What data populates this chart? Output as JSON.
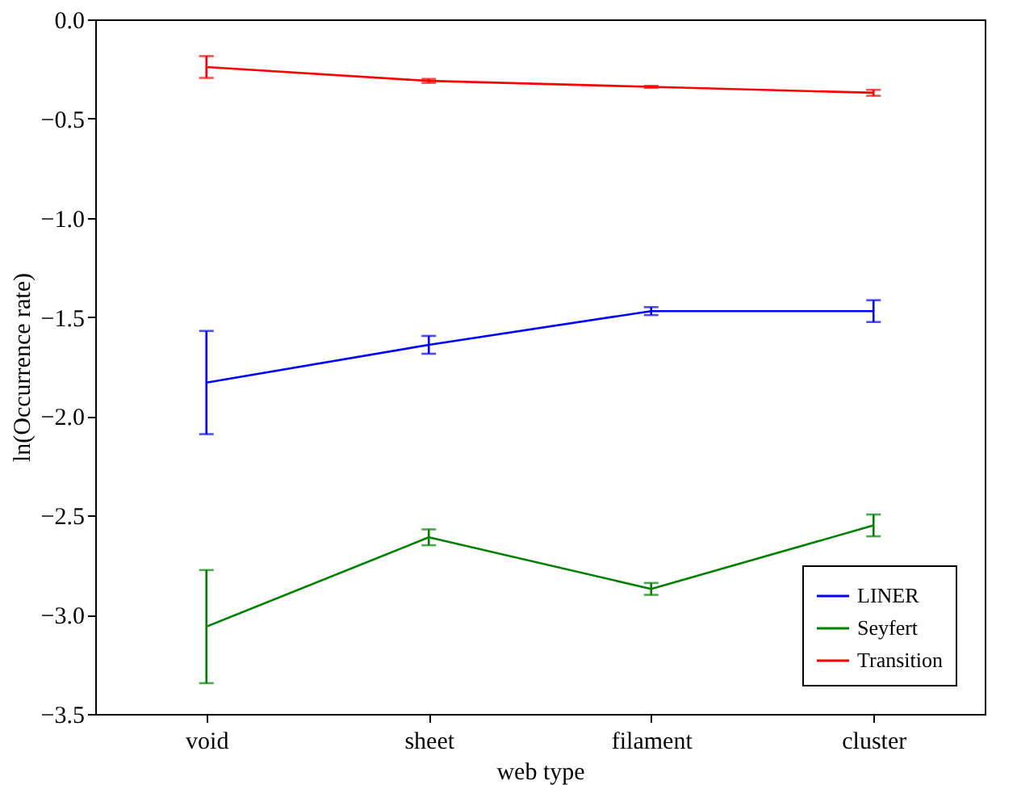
{
  "chart_data": {
    "type": "line",
    "xlabel": "web type",
    "ylabel": "ln(Occurrence rate)",
    "categories": [
      "void",
      "sheet",
      "filament",
      "cluster"
    ],
    "series": [
      {
        "name": "LINER",
        "color": "#0000ff",
        "values": [
          -1.83,
          -1.64,
          -1.47,
          -1.47
        ],
        "errors": [
          0.26,
          0.045,
          0.02,
          0.055
        ]
      },
      {
        "name": "Seyfert",
        "color": "#008000",
        "values": [
          -3.06,
          -2.61,
          -2.87,
          -2.55
        ],
        "errors": [
          0.285,
          0.04,
          0.03,
          0.055
        ]
      },
      {
        "name": "Transition",
        "color": "#ff0000",
        "values": [
          -0.24,
          -0.31,
          -0.34,
          -0.37
        ],
        "errors": [
          0.055,
          0.01,
          0.005,
          0.015
        ]
      }
    ],
    "ylim": [
      -3.5,
      0.0
    ],
    "yticks": [
      {
        "value": 0.0,
        "label": "0.0"
      },
      {
        "value": -0.5,
        "label": "−0.5"
      },
      {
        "value": -1.0,
        "label": "−1.0"
      },
      {
        "value": -1.5,
        "label": "−1.5"
      },
      {
        "value": -2.0,
        "label": "−2.0"
      },
      {
        "value": -2.5,
        "label": "−2.5"
      },
      {
        "value": -3.0,
        "label": "−3.0"
      },
      {
        "value": -3.5,
        "label": "−3.5"
      }
    ],
    "grid": false,
    "legend": "bottom right",
    "marker": "none",
    "line_style": "solid"
  }
}
